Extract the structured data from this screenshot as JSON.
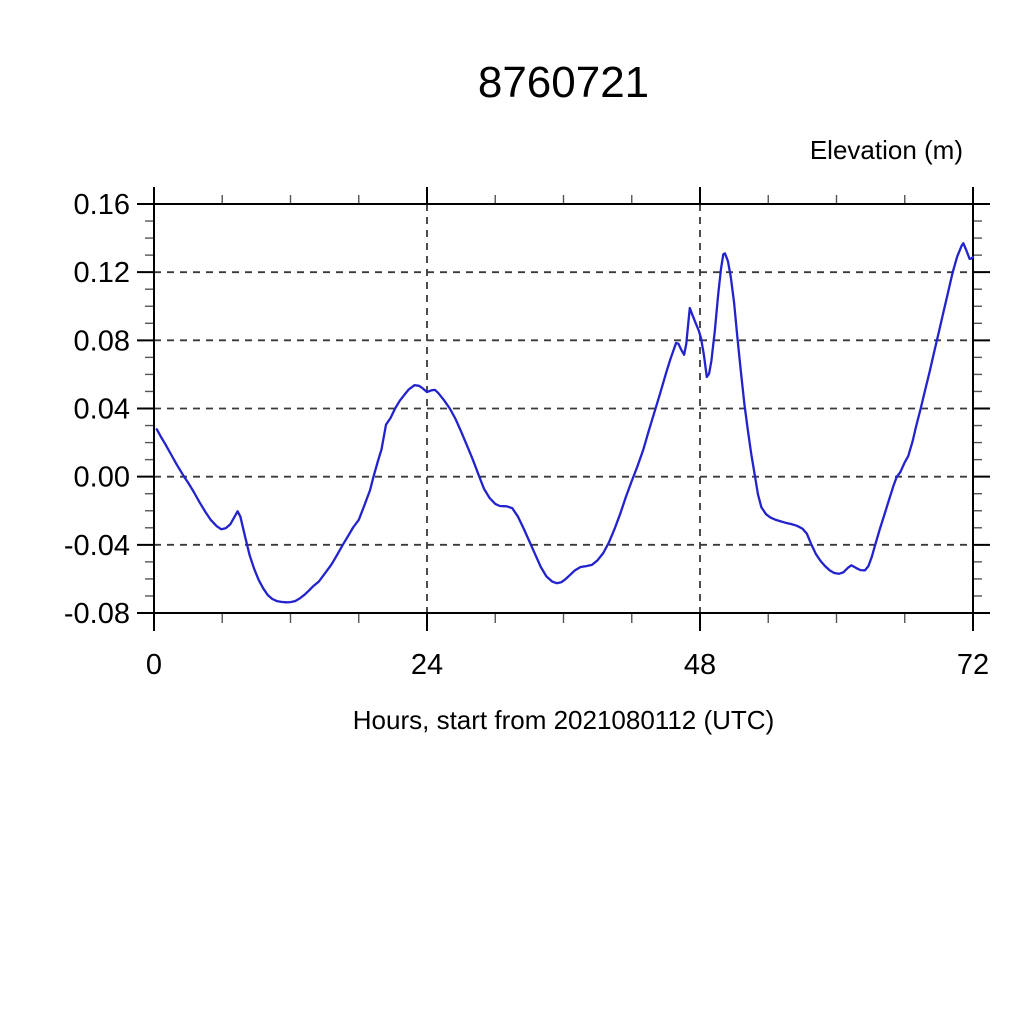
{
  "header": {
    "title": "8760721"
  },
  "chart_data": {
    "type": "line",
    "title": "8760721",
    "ylabel": "Elevation (m)",
    "xlabel": "Hours, start from 2021080112 (UTC)",
    "xlim": [
      0,
      72
    ],
    "ylim": [
      -0.08,
      0.16
    ],
    "x_major_ticks": [
      0,
      24,
      48,
      72
    ],
    "x_tick_labels": [
      "0",
      "24",
      "48",
      "72"
    ],
    "x_minor_step": 6,
    "x_gridlines": [
      24,
      48
    ],
    "y_major_ticks": [
      0.16,
      0.12,
      0.08,
      0.04,
      0.0,
      -0.04,
      -0.08
    ],
    "y_tick_labels": [
      "0.16",
      "0.12",
      "0.08",
      "0.04",
      "0.00",
      "-0.04",
      "-0.08"
    ],
    "y_minor_step": 0.01,
    "grid": "dashed-major",
    "legend": "none",
    "line_color": "#2323cd",
    "frame_color": "#000000",
    "grid_color": "#3a3a3a",
    "series": [
      {
        "name": "elevation",
        "points": [
          [
            0.25,
            0.0278
          ],
          [
            0.6,
            0.0235
          ],
          [
            1,
            0.019
          ],
          [
            1.5,
            0.013
          ],
          [
            2,
            0.007
          ],
          [
            2.65,
            0.0
          ],
          [
            3,
            -0.0035
          ],
          [
            3.5,
            -0.009
          ],
          [
            4,
            -0.015
          ],
          [
            4.5,
            -0.0205
          ],
          [
            5,
            -0.0255
          ],
          [
            5.5,
            -0.029
          ],
          [
            5.9,
            -0.0308
          ],
          [
            6.3,
            -0.0303
          ],
          [
            6.7,
            -0.028
          ],
          [
            7,
            -0.0245
          ],
          [
            7.35,
            -0.0203
          ],
          [
            7.6,
            -0.0235
          ],
          [
            8,
            -0.035
          ],
          [
            8.4,
            -0.046
          ],
          [
            8.8,
            -0.054
          ],
          [
            9.2,
            -0.0605
          ],
          [
            9.6,
            -0.0655
          ],
          [
            10,
            -0.0695
          ],
          [
            10.4,
            -0.0718
          ],
          [
            10.8,
            -0.073
          ],
          [
            11.2,
            -0.0735
          ],
          [
            11.6,
            -0.0737
          ],
          [
            12,
            -0.0736
          ],
          [
            12.4,
            -0.073
          ],
          [
            12.8,
            -0.0715
          ],
          [
            13.2,
            -0.0695
          ],
          [
            13.6,
            -0.067
          ],
          [
            14,
            -0.0642
          ],
          [
            14.5,
            -0.0615
          ],
          [
            15,
            -0.057
          ],
          [
            15.6,
            -0.0515
          ],
          [
            16,
            -0.047
          ],
          [
            16.6,
            -0.04
          ],
          [
            17,
            -0.0355
          ],
          [
            17.5,
            -0.0298
          ],
          [
            18,
            -0.0253
          ],
          [
            18.5,
            -0.0168
          ],
          [
            19,
            -0.0078
          ],
          [
            19.3,
            0.0
          ],
          [
            19.7,
            0.0095
          ],
          [
            20,
            0.016
          ],
          [
            20.4,
            0.0305
          ],
          [
            20.8,
            0.0345
          ],
          [
            21.2,
            0.04
          ],
          [
            21.6,
            0.0445
          ],
          [
            22,
            0.048
          ],
          [
            22.4,
            0.0512
          ],
          [
            22.9,
            0.0537
          ],
          [
            23.3,
            0.0533
          ],
          [
            23.6,
            0.052
          ],
          [
            24,
            0.0497
          ],
          [
            24.4,
            0.0507
          ],
          [
            24.7,
            0.0509
          ],
          [
            25,
            0.049
          ],
          [
            25.5,
            0.0448
          ],
          [
            26,
            0.04
          ],
          [
            26.5,
            0.034
          ],
          [
            27,
            0.0265
          ],
          [
            27.5,
            0.0185
          ],
          [
            28,
            0.0105
          ],
          [
            28.6,
            0.0
          ],
          [
            29,
            -0.007
          ],
          [
            29.5,
            -0.0125
          ],
          [
            30,
            -0.016
          ],
          [
            30.4,
            -0.0172
          ],
          [
            31,
            -0.0174
          ],
          [
            31.5,
            -0.0185
          ],
          [
            32,
            -0.0235
          ],
          [
            32.5,
            -0.0305
          ],
          [
            33,
            -0.038
          ],
          [
            33.5,
            -0.0455
          ],
          [
            34,
            -0.053
          ],
          [
            34.5,
            -0.0585
          ],
          [
            35,
            -0.0615
          ],
          [
            35.4,
            -0.0625
          ],
          [
            35.8,
            -0.062
          ],
          [
            36.2,
            -0.06
          ],
          [
            36.6,
            -0.0575
          ],
          [
            37,
            -0.055
          ],
          [
            37.5,
            -0.053
          ],
          [
            38,
            -0.0525
          ],
          [
            38.5,
            -0.0518
          ],
          [
            39,
            -0.049
          ],
          [
            39.5,
            -0.0448
          ],
          [
            40,
            -0.0385
          ],
          [
            40.5,
            -0.0305
          ],
          [
            41,
            -0.0215
          ],
          [
            41.5,
            -0.0115
          ],
          [
            42,
            -0.0025
          ],
          [
            42.5,
            0.006
          ],
          [
            43,
            0.0155
          ],
          [
            43.5,
            0.027
          ],
          [
            44,
            0.038
          ],
          [
            44.5,
            0.049
          ],
          [
            45,
            0.0605
          ],
          [
            45.4,
            0.069
          ],
          [
            45.9,
            0.0785
          ],
          [
            46.1,
            0.078
          ],
          [
            46.35,
            0.0745
          ],
          [
            46.6,
            0.0715
          ],
          [
            46.8,
            0.078
          ],
          [
            47,
            0.092
          ],
          [
            47.1,
            0.099
          ],
          [
            47.3,
            0.0955
          ],
          [
            47.6,
            0.0905
          ],
          [
            47.9,
            0.0855
          ],
          [
            48.1,
            0.081
          ],
          [
            48.35,
            0.071
          ],
          [
            48.6,
            0.0585
          ],
          [
            48.8,
            0.0605
          ],
          [
            49,
            0.068
          ],
          [
            49.3,
            0.0855
          ],
          [
            49.6,
            0.107
          ],
          [
            49.85,
            0.122
          ],
          [
            50.05,
            0.1305
          ],
          [
            50.2,
            0.131
          ],
          [
            50.45,
            0.1265
          ],
          [
            50.7,
            0.1175
          ],
          [
            51,
            0.102
          ],
          [
            51.3,
            0.081
          ],
          [
            51.6,
            0.061
          ],
          [
            51.9,
            0.0425
          ],
          [
            52.2,
            0.0275
          ],
          [
            52.5,
            0.0135
          ],
          [
            52.8,
            0.0015
          ],
          [
            53.1,
            -0.0105
          ],
          [
            53.4,
            -0.018
          ],
          [
            53.8,
            -0.022
          ],
          [
            54.2,
            -0.024
          ],
          [
            54.6,
            -0.0252
          ],
          [
            55,
            -0.026
          ],
          [
            55.5,
            -0.027
          ],
          [
            56,
            -0.0278
          ],
          [
            56.5,
            -0.0288
          ],
          [
            57,
            -0.0305
          ],
          [
            57.4,
            -0.0335
          ],
          [
            57.8,
            -0.04
          ],
          [
            58.2,
            -0.0455
          ],
          [
            58.6,
            -0.0495
          ],
          [
            59,
            -0.0525
          ],
          [
            59.4,
            -0.055
          ],
          [
            59.8,
            -0.0565
          ],
          [
            60.2,
            -0.057
          ],
          [
            60.6,
            -0.0562
          ],
          [
            61,
            -0.0535
          ],
          [
            61.3,
            -0.052
          ],
          [
            61.7,
            -0.0535
          ],
          [
            62.1,
            -0.0548
          ],
          [
            62.5,
            -0.055
          ],
          [
            62.8,
            -0.0525
          ],
          [
            63.1,
            -0.047
          ],
          [
            63.4,
            -0.04
          ],
          [
            63.8,
            -0.031
          ],
          [
            64.2,
            -0.0225
          ],
          [
            64.6,
            -0.014
          ],
          [
            65,
            -0.0055
          ],
          [
            65.3,
            0.0
          ],
          [
            65.6,
            0.0025
          ],
          [
            66,
            0.0085
          ],
          [
            66.3,
            0.012
          ],
          [
            66.7,
            0.021
          ],
          [
            67,
            0.0295
          ],
          [
            67.4,
            0.04
          ],
          [
            67.8,
            0.051
          ],
          [
            68.2,
            0.062
          ],
          [
            68.6,
            0.0735
          ],
          [
            69,
            0.085
          ],
          [
            69.4,
            0.0965
          ],
          [
            69.8,
            0.108
          ],
          [
            70.2,
            0.1195
          ],
          [
            70.6,
            0.129
          ],
          [
            71,
            0.1355
          ],
          [
            71.15,
            0.137
          ],
          [
            71.4,
            0.133
          ],
          [
            71.7,
            0.1278
          ],
          [
            71.85,
            0.128
          ],
          [
            72,
            0.1288
          ]
        ]
      }
    ]
  }
}
